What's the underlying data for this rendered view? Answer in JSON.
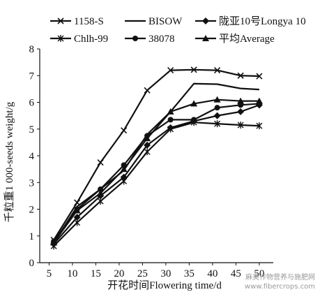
{
  "chart_data": {
    "type": "line",
    "title": "",
    "xlabel": "开花时间Flowering time/d",
    "ylabel": "千粒重1 000-seeds weight/g",
    "x": [
      6,
      11,
      16,
      21,
      26,
      31,
      36,
      41,
      46,
      50
    ],
    "xlim": [
      3,
      53
    ],
    "ylim": [
      0,
      8
    ],
    "xticks": [
      5,
      10,
      15,
      20,
      25,
      30,
      35,
      40,
      45,
      50
    ],
    "yticks": [
      0,
      1,
      2,
      3,
      4,
      5,
      6,
      7,
      8
    ],
    "grid": false,
    "legend_position": "top",
    "series": [
      {
        "name": "1158-S",
        "marker": "x",
        "values": [
          0.85,
          2.25,
          3.75,
          4.95,
          6.45,
          7.2,
          7.22,
          7.2,
          7.0,
          6.98
        ]
      },
      {
        "name": "BISOW",
        "marker": "none",
        "values": [
          0.75,
          2.1,
          2.75,
          3.45,
          4.8,
          5.65,
          6.7,
          6.68,
          6.52,
          6.48
        ]
      },
      {
        "name": "陇亚10号Longya 10",
        "marker": "diamond",
        "values": [
          0.7,
          1.7,
          2.5,
          3.2,
          4.4,
          5.05,
          5.3,
          5.5,
          5.65,
          5.9
        ]
      },
      {
        "name": "Chlh-99",
        "marker": "star",
        "values": [
          0.62,
          1.5,
          2.3,
          3.05,
          4.15,
          5.0,
          5.25,
          5.2,
          5.15,
          5.12
        ]
      },
      {
        "name": "38078",
        "marker": "circle",
        "values": [
          0.8,
          2.0,
          2.75,
          3.65,
          4.75,
          5.35,
          5.35,
          5.8,
          5.9,
          5.95
        ]
      },
      {
        "name": "平均Average",
        "marker": "triangle",
        "values": [
          0.75,
          1.95,
          2.6,
          3.5,
          4.65,
          5.65,
          5.95,
          6.1,
          6.05,
          6.05
        ]
      }
    ]
  },
  "watermark": "麻类作物营养与施肥网\nwww.fibercrops.com"
}
